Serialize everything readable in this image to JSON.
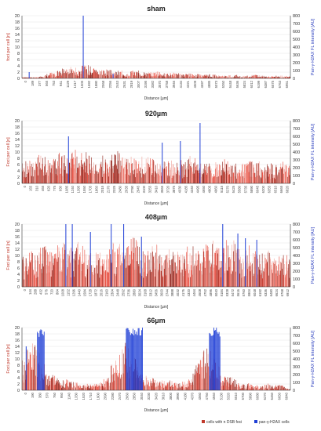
{
  "figure": {
    "legend": {
      "foci_label": "cells with n DSB foci",
      "h2ax_label": "pan-γ-H2AX cells",
      "foci_color": "#c0392b",
      "h2ax_color": "#1f3fd6"
    }
  },
  "chart_data": [
    {
      "type": "bar",
      "title": "sham",
      "xlabel": "Distance [µm]",
      "ylabel_left": "foci per cell [n]",
      "ylabel_right": "Pan-γ-H2AX FL intensity [AU]",
      "ylim_left": [
        0,
        20
      ],
      "ylim_right": [
        0,
        800
      ],
      "yticks_left": [
        "0",
        "2",
        "4",
        "6",
        "8",
        "10",
        "12",
        "14",
        "16",
        "18",
        "20"
      ],
      "yticks_right": [
        "0",
        "100",
        "200",
        "300",
        "400",
        "500",
        "600",
        "700",
        "800"
      ],
      "xlim": [
        0,
        7100
      ],
      "xticks": [
        "0",
        "189",
        "377",
        "565",
        "753",
        "941",
        "1129",
        "1317",
        "1505",
        "1692",
        "1880",
        "2068",
        "2256",
        "2443",
        "2631",
        "2819",
        "3007",
        "3195",
        "3382",
        "3570",
        "3758",
        "3946",
        "4134",
        "4321",
        "4509",
        "4697",
        "4885",
        "5073",
        "5260",
        "5448",
        "5636",
        "5824",
        "6012",
        "6199",
        "6387",
        "6575",
        "6763",
        "6951"
      ],
      "foci_peaks": [
        [
          900,
          1.8
        ],
        [
          1150,
          2.5
        ],
        [
          1300,
          3.5
        ],
        [
          1500,
          2.8
        ],
        [
          1700,
          3.8
        ],
        [
          1900,
          2.2
        ],
        [
          2200,
          2.6
        ],
        [
          2600,
          2.2
        ],
        [
          3000,
          2.3
        ],
        [
          3500,
          2.0
        ],
        [
          4000,
          1.6
        ],
        [
          4500,
          1.4
        ],
        [
          5000,
          1.2
        ],
        [
          5600,
          1.0
        ],
        [
          6200,
          1.0
        ],
        [
          6800,
          0.8
        ]
      ],
      "h2ax_spikes": [
        [
          1610,
          800
        ],
        [
          180,
          80
        ],
        [
          2400,
          60
        ]
      ]
    },
    {
      "type": "bar",
      "title": "920µm",
      "xlabel": "Distance [µm]",
      "ylabel_left": "Foci per cell [n]",
      "ylabel_right": "Pan-γ-H2AX FL intensity [AU]",
      "ylim_left": [
        0,
        20
      ],
      "ylim_right": [
        0,
        800
      ],
      "yticks_left": [
        "0",
        "2",
        "4",
        "6",
        "8",
        "10",
        "12",
        "14",
        "16",
        "18",
        "20"
      ],
      "yticks_right": [
        "0",
        "100",
        "200",
        "300",
        "400",
        "500",
        "600",
        "700",
        "800"
      ],
      "xlim": [
        0,
        7100
      ],
      "xticks": [
        "0",
        "155",
        "310",
        "465",
        "620",
        "775",
        "930",
        "1085",
        "1240",
        "1395",
        "1550",
        "1705",
        "1860",
        "2015",
        "2170",
        "2325",
        "2480",
        "2635",
        "2790",
        "2945",
        "3100",
        "3255",
        "3410",
        "3565",
        "3720",
        "3875",
        "4030",
        "4185",
        "4340",
        "4495",
        "4650",
        "4805",
        "4960",
        "5115",
        "5270",
        "5425",
        "5580",
        "5735",
        "5890",
        "6045",
        "6200",
        "6355",
        "6510",
        "6665",
        "6820"
      ],
      "foci_peaks": [
        [
          200,
          7
        ],
        [
          500,
          8
        ],
        [
          900,
          9
        ],
        [
          1300,
          10
        ],
        [
          1700,
          9
        ],
        [
          2100,
          8
        ],
        [
          2500,
          9
        ],
        [
          2900,
          8
        ],
        [
          3300,
          8
        ],
        [
          3700,
          7
        ],
        [
          4100,
          7
        ],
        [
          4500,
          8
        ],
        [
          4900,
          6
        ],
        [
          5300,
          7
        ],
        [
          5700,
          6
        ],
        [
          6100,
          7
        ],
        [
          6500,
          6
        ],
        [
          6900,
          6
        ]
      ],
      "h2ax_spikes": [
        [
          1220,
          600
        ],
        [
          3700,
          520
        ],
        [
          4180,
          540
        ],
        [
          4700,
          770
        ]
      ]
    },
    {
      "type": "bar",
      "title": "408µm",
      "xlabel": "Distance [µm]",
      "ylabel_left": "Foci per cell [n]",
      "ylabel_right": "Pan-γ-H2AX FL intensity [AU]",
      "ylim_left": [
        0,
        20
      ],
      "ylim_right": [
        0,
        800
      ],
      "yticks_left": [
        "0",
        "2",
        "4",
        "6",
        "8",
        "10",
        "12",
        "14",
        "16",
        "18",
        "20"
      ],
      "yticks_right": [
        "0",
        "100",
        "200",
        "300",
        "400",
        "500",
        "600",
        "700",
        "800"
      ],
      "xlim": [
        0,
        7100
      ],
      "xticks": [
        "0",
        "144",
        "288",
        "432",
        "576",
        "720",
        "864",
        "1008",
        "1152",
        "1296",
        "1440",
        "1584",
        "1728",
        "1872",
        "2016",
        "2160",
        "2304",
        "2448",
        "2592",
        "2736",
        "2880",
        "3024",
        "3168",
        "3312",
        "3456",
        "3600",
        "3744",
        "3888",
        "4032",
        "4176",
        "4320",
        "4464",
        "4608",
        "4752",
        "4896",
        "5040",
        "5184",
        "5328",
        "5472",
        "5616",
        "5760",
        "5904",
        "6048",
        "6192",
        "6336",
        "6480",
        "6624",
        "6768",
        "6912"
      ],
      "foci_peaks": [
        [
          200,
          10
        ],
        [
          600,
          12
        ],
        [
          1100,
          14
        ],
        [
          1500,
          13
        ],
        [
          2000,
          11
        ],
        [
          2500,
          13
        ],
        [
          3000,
          14
        ],
        [
          3500,
          12
        ],
        [
          4000,
          11
        ],
        [
          4500,
          12
        ],
        [
          5000,
          13
        ],
        [
          5500,
          14
        ],
        [
          6000,
          12
        ],
        [
          6500,
          11
        ],
        [
          7000,
          10
        ]
      ],
      "h2ax_spikes": [
        [
          1150,
          800
        ],
        [
          1320,
          800
        ],
        [
          1800,
          700
        ],
        [
          2350,
          800
        ],
        [
          2680,
          800
        ],
        [
          3150,
          640
        ],
        [
          5300,
          800
        ],
        [
          5700,
          680
        ],
        [
          5900,
          620
        ],
        [
          6200,
          600
        ]
      ]
    },
    {
      "type": "bar",
      "title": "66µm",
      "xlabel": "Distance [µm]",
      "ylabel_left": "Foci per cell [n]",
      "ylabel_right": "Pan-γ-H2AX FL intensity [AU]",
      "ylim_left": [
        0,
        20
      ],
      "ylim_right": [
        0,
        800
      ],
      "yticks_left": [
        "0",
        "2",
        "4",
        "6",
        "8",
        "10",
        "12",
        "14",
        "16",
        "18",
        "20"
      ],
      "yticks_right": [
        "0",
        "100",
        "200",
        "300",
        "400",
        "500",
        "600",
        "700",
        "800"
      ],
      "xlim": [
        0,
        7100
      ],
      "xticks": [
        "0",
        "190",
        "380",
        "570",
        "760",
        "950",
        "1140",
        "1330",
        "1520",
        "1710",
        "1900",
        "2090",
        "2280",
        "2470",
        "2660",
        "2850",
        "3040",
        "3230",
        "3420",
        "3610",
        "3800",
        "3990",
        "4180",
        "4370",
        "4560",
        "4750",
        "4940",
        "5130",
        "5320",
        "5510",
        "5700",
        "5890",
        "6080",
        "6270",
        "6460",
        "6650",
        "6840"
      ],
      "foci_peaks": [
        [
          300,
          13
        ],
        [
          700,
          5
        ],
        [
          1200,
          3
        ],
        [
          1800,
          2
        ],
        [
          2400,
          4
        ],
        [
          2700,
          14
        ],
        [
          3200,
          5
        ],
        [
          3800,
          3
        ],
        [
          4400,
          3
        ],
        [
          4900,
          12
        ],
        [
          5400,
          4
        ],
        [
          6000,
          2
        ],
        [
          6600,
          2
        ]
      ],
      "h2ax_blocks": [
        [
          400,
          600,
          800
        ],
        [
          2750,
          3200,
          800
        ],
        [
          4950,
          5250,
          800
        ]
      ],
      "h2ax_spikes": [
        [
          100,
          560
        ]
      ]
    }
  ]
}
